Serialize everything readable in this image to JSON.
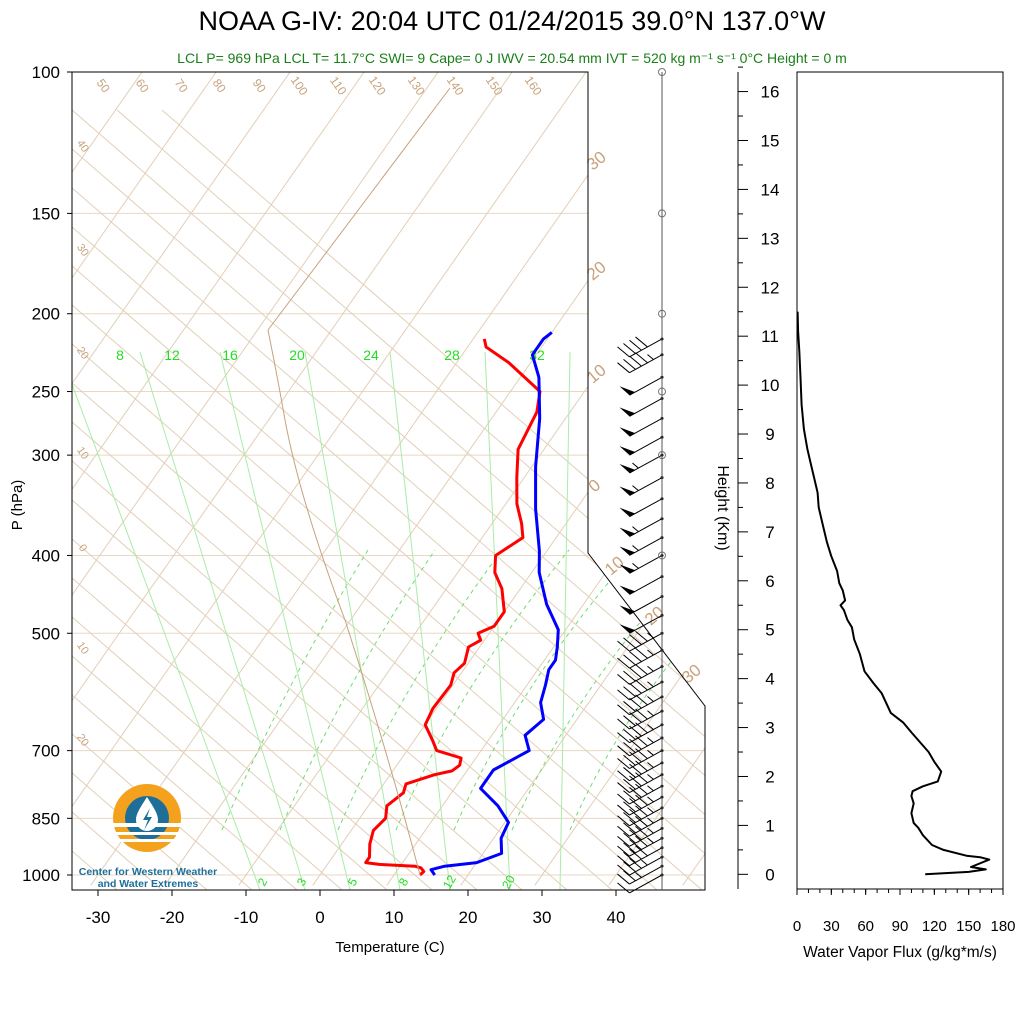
{
  "header": {
    "title": "NOAA G-IV: 20:04 UTC 01/24/2015  39.0°N 137.0°W",
    "subtitle": "LCL P= 969 hPa  LCL T= 11.7°C  SWI= 9  Cape= 0 J  IWV = 20.54 mm  IVT = 520 kg m⁻¹ s⁻¹  0°C Height = 0 m"
  },
  "logo": {
    "line1": "Center for Western Weather",
    "line2": "and Water Extremes",
    "colors": {
      "orange": "#f4a21d",
      "blue": "#1d6f9a"
    }
  },
  "colors": {
    "temperature": "#ff0000",
    "dewpoint": "#0000ff",
    "isotherm_label": "#c8a27c",
    "mixing_ratio": "#33dd33",
    "flux": "#000000"
  },
  "chart_data": [
    {
      "type": "line",
      "title": "Skew-T log-P",
      "xlabel": "Temperature (C)",
      "ylabel": "P (hPa)",
      "xlim": [
        -34,
        50
      ],
      "ylim": [
        1030,
        100
      ],
      "y_scale": "log",
      "x_ticks": [
        -30,
        -20,
        -10,
        0,
        10,
        20,
        30,
        40
      ],
      "y_ticks": [
        100,
        150,
        200,
        250,
        300,
        400,
        500,
        700,
        850,
        1000
      ],
      "isotherm_labels": [
        "50",
        "60",
        "70",
        "80",
        "90",
        "100",
        "110",
        "120",
        "130",
        "140",
        "150",
        "160",
        "40",
        "30",
        "20",
        "10",
        "0",
        "10",
        "20"
      ],
      "skew_labels": [
        "30",
        "20",
        "10",
        "0",
        "10",
        "20",
        "30"
      ],
      "mixing_ratio_labels": [
        "8",
        "12",
        "16",
        "20",
        "24",
        "28",
        "32"
      ],
      "mixing_ratio_bottom_labels": [
        "2",
        "3",
        "5",
        "8",
        "12",
        "20"
      ],
      "series": [
        {
          "name": "Temperature",
          "color": "#ff0000",
          "points": [
            [
              13.5,
              1000
            ],
            [
              13.7,
              990
            ],
            [
              13.0,
              980
            ],
            [
              12.0,
              975
            ],
            [
              7.0,
              970
            ],
            [
              5.0,
              965
            ],
            [
              5.0,
              950
            ],
            [
              3.8,
              915
            ],
            [
              3.0,
              880
            ],
            [
              3.5,
              850
            ],
            [
              2.5,
              820
            ],
            [
              3.5,
              790
            ],
            [
              3.0,
              770
            ],
            [
              6.0,
              750
            ],
            [
              8.0,
              742
            ],
            [
              8.5,
              730
            ],
            [
              8.0,
              715
            ],
            [
              4.0,
              700
            ],
            [
              2.5,
              680
            ],
            [
              0.0,
              650
            ],
            [
              -0.5,
              620
            ],
            [
              -0.3,
              580
            ],
            [
              -1.0,
              560
            ],
            [
              -0.5,
              545
            ],
            [
              -1.5,
              520
            ],
            [
              -0.5,
              510
            ],
            [
              -1.5,
              500
            ],
            [
              0.0,
              490
            ],
            [
              0.0,
              470
            ],
            [
              -2.5,
              440
            ],
            [
              -5.0,
              420
            ],
            [
              -6.5,
              400
            ],
            [
              -4.5,
              380
            ],
            [
              -6.0,
              365
            ],
            [
              -8.5,
              345
            ],
            [
              -11.0,
              320
            ],
            [
              -13.5,
              295
            ],
            [
              -14.5,
              265
            ],
            [
              -16.0,
              250
            ],
            [
              -23.0,
              230
            ],
            [
              -27.5,
              220
            ],
            [
              -28.5,
              215
            ]
          ]
        },
        {
          "name": "Dewpoint",
          "color": "#0000ff",
          "points": [
            [
              15.5,
              1000
            ],
            [
              14.5,
              985
            ],
            [
              16.0,
              975
            ],
            [
              20.0,
              965
            ],
            [
              22.5,
              940
            ],
            [
              21.0,
              900
            ],
            [
              20.5,
              860
            ],
            [
              17.5,
              820
            ],
            [
              13.5,
              780
            ],
            [
              13.5,
              740
            ],
            [
              16.5,
              700
            ],
            [
              14.5,
              670
            ],
            [
              15.5,
              640
            ],
            [
              13.5,
              610
            ],
            [
              12.5,
              580
            ],
            [
              11.5,
              555
            ],
            [
              11.5,
              540
            ],
            [
              10.5,
              520
            ],
            [
              9.0,
              495
            ],
            [
              5.0,
              460
            ],
            [
              1.0,
              420
            ],
            [
              -1.0,
              395
            ],
            [
              -5.5,
              350
            ],
            [
              -9.5,
              310
            ],
            [
              -13.5,
              270
            ],
            [
              -17.5,
              240
            ],
            [
              -20.5,
              225
            ],
            [
              -20.5,
              215
            ],
            [
              -20.0,
              211
            ]
          ]
        },
        {
          "name": "Parcel",
          "color": "#c8a27c",
          "points": [
            [
              13.5,
              1000
            ],
            [
              11.7,
              969
            ],
            [
              7.0,
              850
            ],
            [
              2.0,
              700
            ],
            [
              -3.5,
              550
            ],
            [
              -9.0,
              450
            ],
            [
              -13.0,
              400
            ],
            [
              -17.5,
              350
            ],
            [
              -24.0,
              300
            ],
            [
              -30.0,
              250
            ],
            [
              -33.0,
              230
            ],
            [
              -20.0,
              200
            ],
            [
              0.0,
              110
            ]
          ]
        }
      ]
    },
    {
      "type": "line",
      "title": "Water Vapor Flux Profile",
      "xlabel": "Water Vapor Flux (g/kg*m/s)",
      "ylabel": "Height (Km)",
      "xlim": [
        0,
        180
      ],
      "ylim": [
        -0.3,
        16.4
      ],
      "x_ticks": [
        0,
        30,
        60,
        90,
        120,
        150,
        180
      ],
      "y_ticks": [
        0,
        1,
        2,
        3,
        4,
        5,
        6,
        7,
        8,
        9,
        10,
        11,
        12,
        13,
        14,
        15,
        16
      ],
      "series": [
        {
          "name": "Flux",
          "color": "#000000",
          "points": [
            [
              112,
              0.0
            ],
            [
              150,
              0.05
            ],
            [
              165,
              0.1
            ],
            [
              152,
              0.15
            ],
            [
              168,
              0.3
            ],
            [
              160,
              0.35
            ],
            [
              148,
              0.38
            ],
            [
              128,
              0.5
            ],
            [
              118,
              0.6
            ],
            [
              110,
              0.8
            ],
            [
              106,
              0.95
            ],
            [
              102,
              1.05
            ],
            [
              100,
              1.25
            ],
            [
              102,
              1.45
            ],
            [
              100,
              1.6
            ],
            [
              101,
              1.7
            ],
            [
              110,
              1.8
            ],
            [
              123,
              1.9
            ],
            [
              126,
              2.1
            ],
            [
              120,
              2.3
            ],
            [
              115,
              2.5
            ],
            [
              100,
              2.9
            ],
            [
              93,
              3.1
            ],
            [
              82,
              3.3
            ],
            [
              74,
              3.7
            ],
            [
              67,
              3.9
            ],
            [
              59,
              4.15
            ],
            [
              55,
              4.5
            ],
            [
              50,
              4.8
            ],
            [
              48,
              5.05
            ],
            [
              44,
              5.2
            ],
            [
              41,
              5.4
            ],
            [
              38,
              5.5
            ],
            [
              42,
              5.6
            ],
            [
              40,
              5.8
            ],
            [
              37,
              5.95
            ],
            [
              35,
              6.2
            ],
            [
              30,
              6.5
            ],
            [
              26,
              6.8
            ],
            [
              23,
              7.1
            ],
            [
              19,
              7.5
            ],
            [
              18,
              7.8
            ],
            [
              15,
              8.1
            ],
            [
              12,
              8.4
            ],
            [
              9,
              8.7
            ],
            [
              6,
              9.1
            ],
            [
              4,
              9.6
            ],
            [
              3,
              10.2
            ],
            [
              2,
              10.7
            ],
            [
              1,
              11.1
            ],
            [
              0.5,
              11.5
            ]
          ]
        }
      ]
    }
  ],
  "wind_barbs": {
    "levels_hpa": [
      1000,
      975,
      950,
      925,
      900,
      875,
      850,
      825,
      800,
      775,
      750,
      725,
      700,
      675,
      650,
      625,
      600,
      575,
      550,
      525,
      500,
      475,
      450,
      425,
      400,
      380,
      360,
      340,
      320,
      300,
      285,
      270,
      255,
      240,
      225,
      215
    ],
    "direction_deg": 225,
    "speed_kt": [
      10,
      25,
      35,
      40,
      45,
      45,
      45,
      45,
      45,
      45,
      45,
      45,
      45,
      45,
      45,
      45,
      45,
      45,
      45,
      45,
      45,
      50,
      50,
      50,
      55,
      55,
      55,
      50,
      55,
      55,
      50,
      50,
      50,
      50,
      45,
      40
    ]
  }
}
